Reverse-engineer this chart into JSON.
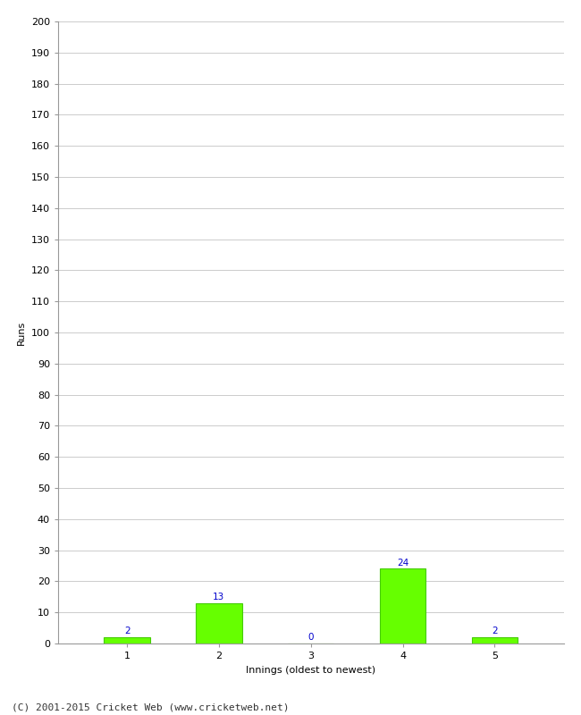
{
  "xlabel": "Innings (oldest to newest)",
  "ylabel": "Runs",
  "categories": [
    "1",
    "2",
    "3",
    "4",
    "5"
  ],
  "values": [
    2,
    13,
    0,
    24,
    2
  ],
  "bar_color": "#66ff00",
  "bar_edge_color": "#44cc00",
  "label_color": "#0000cc",
  "ylim": [
    0,
    200
  ],
  "yticks": [
    0,
    10,
    20,
    30,
    40,
    50,
    60,
    70,
    80,
    90,
    100,
    110,
    120,
    130,
    140,
    150,
    160,
    170,
    180,
    190,
    200
  ],
  "background_color": "#ffffff",
  "grid_color": "#cccccc",
  "footer": "(C) 2001-2015 Cricket Web (www.cricketweb.net)",
  "label_fontsize": 7.5,
  "axis_label_fontsize": 8,
  "tick_fontsize": 8,
  "footer_fontsize": 8,
  "bar_width": 0.5
}
